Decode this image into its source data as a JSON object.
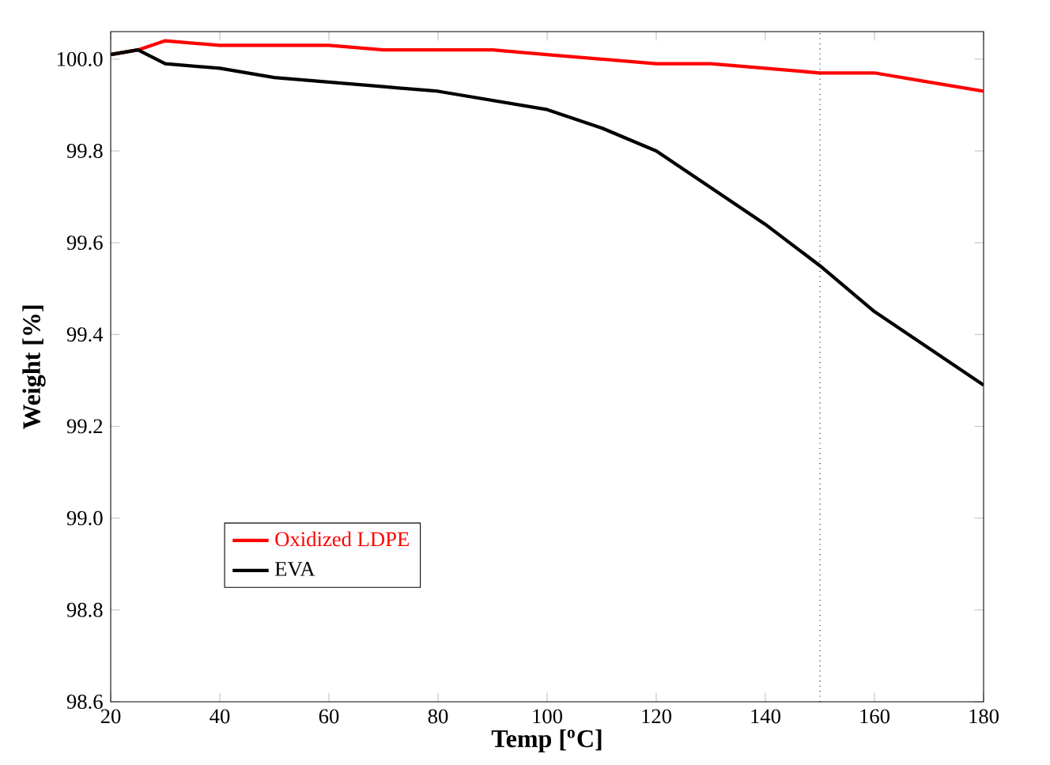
{
  "chart_data": {
    "type": "line",
    "xlabel": "Temp [$^{o}$C]",
    "ylabel": "Weight [%]",
    "x": [
      20,
      25,
      30,
      40,
      50,
      60,
      70,
      80,
      90,
      100,
      110,
      120,
      130,
      140,
      150,
      160,
      170,
      180
    ],
    "series": [
      {
        "name": "Oxidized LDPE",
        "color": "#ff0000",
        "values": [
          100.01,
          100.02,
          100.04,
          100.03,
          100.03,
          100.03,
          100.02,
          100.02,
          100.02,
          100.01,
          100.0,
          99.99,
          99.99,
          99.98,
          99.97,
          99.97,
          99.95,
          99.93
        ]
      },
      {
        "name": "EVA",
        "color": "#000000",
        "values": [
          100.01,
          100.02,
          99.99,
          99.98,
          99.96,
          99.95,
          99.94,
          99.93,
          99.91,
          99.89,
          99.85,
          99.8,
          99.72,
          99.64,
          99.55,
          99.45,
          99.37,
          99.29
        ]
      }
    ],
    "xlim": [
      20,
      180
    ],
    "ylim": [
      98.6,
      100.06
    ],
    "xticks": [
      20,
      40,
      60,
      80,
      100,
      120,
      140,
      160,
      180
    ],
    "yticks": [
      98.6,
      98.8,
      {
        "value": 99.0,
        "label": "99.0"
      },
      99.2,
      99.4,
      99.6,
      99.8,
      {
        "value": 100.0,
        "label": "100.0"
      }
    ],
    "ref_lines": [
      {
        "axis": "x",
        "value": 150,
        "line_style": "dotted"
      }
    ],
    "legend": "bottom left",
    "marker": "none",
    "line_style": "solid",
    "grid": false
  }
}
